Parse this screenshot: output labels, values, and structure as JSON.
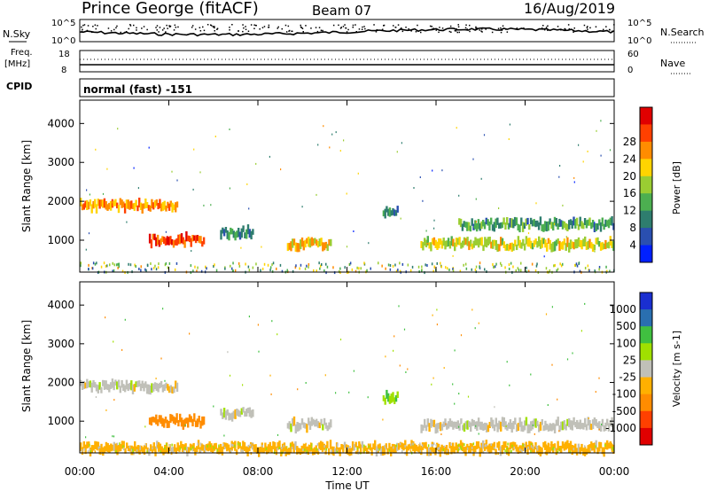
{
  "header": {
    "title": "Prince George (fitACF)",
    "beam": "Beam 07",
    "date": "16/Aug/2019"
  },
  "noise_panel": {
    "left_label": "N.Sky",
    "right_label": "N.Search",
    "left_ticks": [
      "10^5",
      "10^0"
    ],
    "right_ticks": [
      "10^5",
      "10^0"
    ]
  },
  "freq_panel": {
    "left_label_1": "Freq.",
    "left_label_2": "[MHz]",
    "right_label": "Nave",
    "left_ticks": [
      "18",
      "8"
    ],
    "right_ticks": [
      "60",
      "0"
    ]
  },
  "cpid_panel": {
    "label": "CPID",
    "mode_text": "normal (fast) -151"
  },
  "x_axis": {
    "label": "Time UT",
    "ticks": [
      "00:00",
      "04:00",
      "08:00",
      "12:00",
      "16:00",
      "20:00",
      "00:00"
    ]
  },
  "colors": {
    "power_scale": [
      "#0020ff",
      "#2a4fb0",
      "#2e7d6e",
      "#4caf50",
      "#9acd32",
      "#ffd400",
      "#ff8c00",
      "#ff4000",
      "#e00000"
    ],
    "velocity_scale": [
      "#e00000",
      "#ff4000",
      "#ff8c00",
      "#ffb000",
      "#c0c0b8",
      "#a0e000",
      "#40c040",
      "#2a6fb0",
      "#1a2fd0"
    ]
  },
  "chart_data": [
    {
      "type": "heatmap",
      "panel": "power",
      "ylabel": "Slant Range [km]",
      "ylim": [
        180,
        4600
      ],
      "yticks": [
        "1000",
        "2000",
        "3000",
        "4000"
      ],
      "xlim": [
        "00:00",
        "24:00"
      ],
      "colorbar_label": "Power [dB]",
      "colorbar_ticks": [
        "4",
        "8",
        "12",
        "16",
        "20",
        "24",
        "28"
      ],
      "features": [
        {
          "t_start_h": 0.0,
          "t_end_h": 4.4,
          "range_km": 1900,
          "power_db": 22
        },
        {
          "t_start_h": 3.1,
          "t_end_h": 5.6,
          "range_km": 1000,
          "power_db": 26
        },
        {
          "t_start_h": 6.3,
          "t_end_h": 7.8,
          "range_km": 1200,
          "power_db": 10
        },
        {
          "t_start_h": 9.3,
          "t_end_h": 11.3,
          "range_km": 900,
          "power_db": 20
        },
        {
          "t_start_h": 13.6,
          "t_end_h": 14.3,
          "range_km": 1700,
          "power_db": 10
        },
        {
          "t_start_h": 15.3,
          "t_end_h": 24.0,
          "range_km": 900,
          "power_db": 18
        },
        {
          "t_start_h": 17.0,
          "t_end_h": 24.0,
          "range_km": 1400,
          "power_db": 12
        }
      ]
    },
    {
      "type": "heatmap",
      "panel": "velocity",
      "ylabel": "Slant Range [km]",
      "ylim": [
        180,
        4600
      ],
      "yticks": [
        "1000",
        "2000",
        "3000",
        "4000"
      ],
      "xlim": [
        "00:00",
        "24:00"
      ],
      "colorbar_label": "Velocity [m s-1]",
      "colorbar_ticks": [
        "1000",
        "500",
        "100",
        "25",
        "-25",
        "-100",
        "-500",
        "-1000"
      ],
      "features": [
        {
          "t_start_h": 0.0,
          "t_end_h": 4.4,
          "range_km": 1900,
          "velocity_ms": 0
        },
        {
          "t_start_h": 3.1,
          "t_end_h": 5.6,
          "range_km": 1000,
          "velocity_ms": -150
        },
        {
          "t_start_h": 6.3,
          "t_end_h": 7.8,
          "range_km": 1200,
          "velocity_ms": 0
        },
        {
          "t_start_h": 9.3,
          "t_end_h": 11.3,
          "range_km": 900,
          "velocity_ms": 0
        },
        {
          "t_start_h": 13.6,
          "t_end_h": 14.3,
          "range_km": 1600,
          "velocity_ms": 100
        },
        {
          "t_start_h": 15.3,
          "t_end_h": 24.0,
          "range_km": 900,
          "velocity_ms": 0
        },
        {
          "t_start_h": 0.0,
          "t_end_h": 24.0,
          "range_km": 300,
          "velocity_ms": -50
        }
      ]
    }
  ]
}
